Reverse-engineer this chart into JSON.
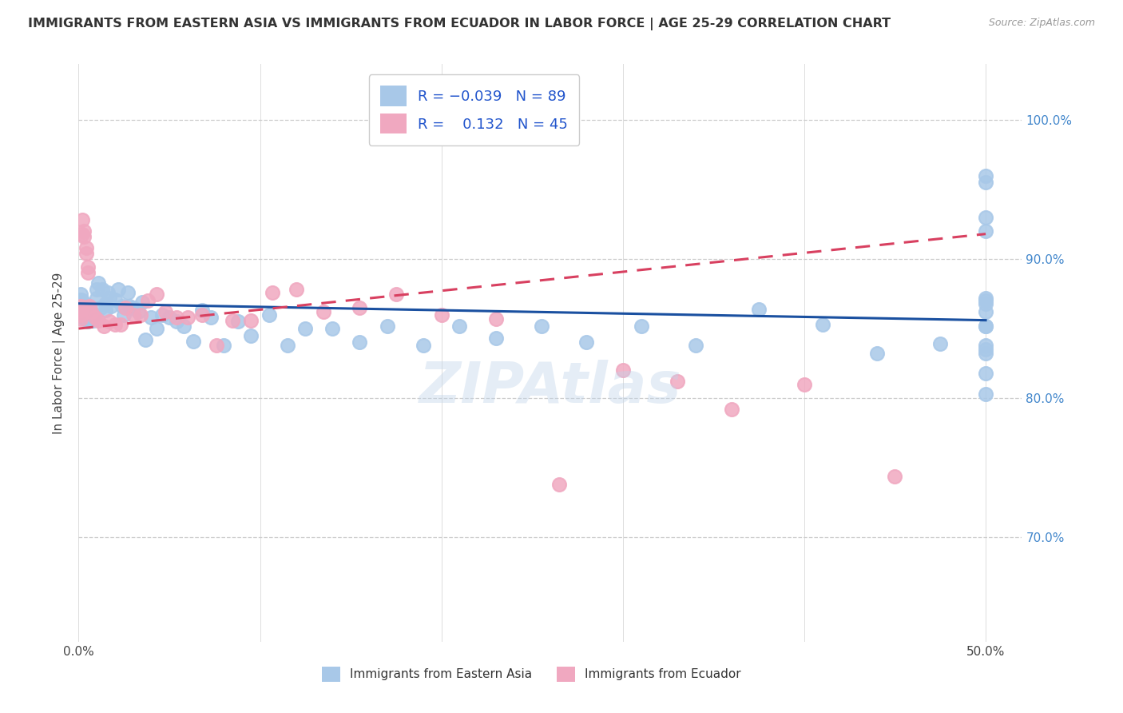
{
  "title": "IMMIGRANTS FROM EASTERN ASIA VS IMMIGRANTS FROM ECUADOR IN LABOR FORCE | AGE 25-29 CORRELATION CHART",
  "source": "Source: ZipAtlas.com",
  "ylabel": "In Labor Force | Age 25-29",
  "ytick_values": [
    0.7,
    0.8,
    0.9,
    1.0
  ],
  "xlim": [
    0.0,
    0.52
  ],
  "ylim": [
    0.625,
    1.04
  ],
  "R_blue": -0.039,
  "N_blue": 89,
  "R_pink": 0.132,
  "N_pink": 45,
  "legend_label_blue": "Immigrants from Eastern Asia",
  "legend_label_pink": "Immigrants from Ecuador",
  "blue_color": "#a8c8e8",
  "pink_color": "#f0a8c0",
  "blue_line_color": "#1a50a0",
  "pink_line_color": "#d84060",
  "blue_x": [
    0.001,
    0.001,
    0.001,
    0.001,
    0.001,
    0.002,
    0.002,
    0.002,
    0.002,
    0.003,
    0.003,
    0.003,
    0.004,
    0.004,
    0.004,
    0.005,
    0.005,
    0.005,
    0.006,
    0.006,
    0.007,
    0.007,
    0.008,
    0.008,
    0.009,
    0.01,
    0.01,
    0.011,
    0.012,
    0.013,
    0.015,
    0.015,
    0.016,
    0.017,
    0.018,
    0.02,
    0.022,
    0.024,
    0.025,
    0.027,
    0.028,
    0.03,
    0.033,
    0.035,
    0.037,
    0.04,
    0.043,
    0.046,
    0.05,
    0.054,
    0.058,
    0.063,
    0.068,
    0.073,
    0.08,
    0.088,
    0.095,
    0.105,
    0.115,
    0.125,
    0.14,
    0.155,
    0.17,
    0.19,
    0.21,
    0.23,
    0.255,
    0.28,
    0.31,
    0.34,
    0.375,
    0.41,
    0.44,
    0.475,
    0.5,
    0.5,
    0.5,
    0.5,
    0.5,
    0.5,
    0.5,
    0.5,
    0.5,
    0.5,
    0.5,
    0.5,
    0.5,
    0.5,
    0.5
  ],
  "blue_y": [
    0.86,
    0.863,
    0.867,
    0.871,
    0.875,
    0.858,
    0.862,
    0.866,
    0.87,
    0.858,
    0.862,
    0.866,
    0.857,
    0.862,
    0.867,
    0.855,
    0.859,
    0.863,
    0.857,
    0.861,
    0.857,
    0.862,
    0.856,
    0.86,
    0.86,
    0.872,
    0.878,
    0.883,
    0.865,
    0.878,
    0.863,
    0.868,
    0.876,
    0.872,
    0.866,
    0.871,
    0.878,
    0.866,
    0.86,
    0.876,
    0.866,
    0.865,
    0.862,
    0.869,
    0.842,
    0.858,
    0.85,
    0.86,
    0.858,
    0.855,
    0.852,
    0.841,
    0.863,
    0.858,
    0.838,
    0.855,
    0.845,
    0.86,
    0.838,
    0.85,
    0.85,
    0.84,
    0.852,
    0.838,
    0.852,
    0.843,
    0.852,
    0.84,
    0.852,
    0.838,
    0.864,
    0.853,
    0.832,
    0.839,
    0.87,
    0.872,
    0.852,
    0.832,
    0.818,
    0.803,
    0.852,
    0.862,
    0.835,
    0.92,
    0.93,
    0.955,
    0.96,
    0.868,
    0.838
  ],
  "pink_x": [
    0.001,
    0.001,
    0.001,
    0.001,
    0.002,
    0.002,
    0.003,
    0.003,
    0.004,
    0.004,
    0.005,
    0.005,
    0.006,
    0.007,
    0.009,
    0.011,
    0.014,
    0.017,
    0.02,
    0.023,
    0.026,
    0.03,
    0.034,
    0.038,
    0.043,
    0.048,
    0.054,
    0.06,
    0.068,
    0.076,
    0.085,
    0.095,
    0.107,
    0.12,
    0.135,
    0.155,
    0.175,
    0.2,
    0.23,
    0.265,
    0.3,
    0.33,
    0.36,
    0.4,
    0.45
  ],
  "pink_y": [
    0.857,
    0.86,
    0.863,
    0.866,
    0.918,
    0.928,
    0.916,
    0.92,
    0.904,
    0.908,
    0.894,
    0.89,
    0.866,
    0.862,
    0.858,
    0.856,
    0.852,
    0.855,
    0.853,
    0.853,
    0.865,
    0.86,
    0.86,
    0.87,
    0.875,
    0.862,
    0.858,
    0.858,
    0.86,
    0.838,
    0.856,
    0.856,
    0.876,
    0.878,
    0.862,
    0.865,
    0.875,
    0.86,
    0.857,
    0.738,
    0.82,
    0.812,
    0.792,
    0.81,
    0.744
  ]
}
